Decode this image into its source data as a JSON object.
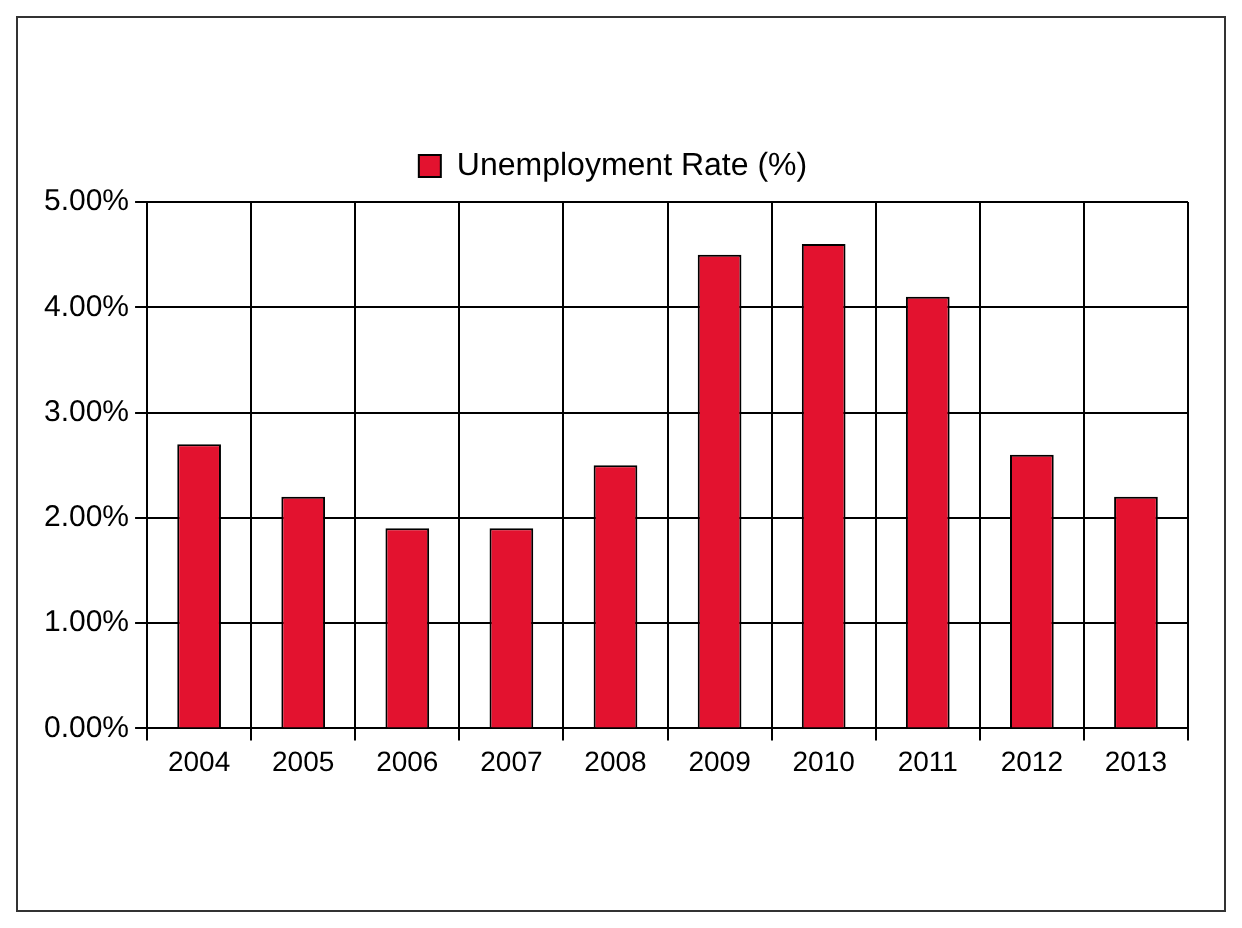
{
  "chart_data": {
    "type": "bar",
    "categories": [
      "2004",
      "2005",
      "2006",
      "2007",
      "2008",
      "2009",
      "2010",
      "2011",
      "2012",
      "2013"
    ],
    "series": [
      {
        "name": "Unemployment Rate (%)",
        "color": "#e3122f",
        "values": [
          2.7,
          2.2,
          1.9,
          1.9,
          2.5,
          4.5,
          4.6,
          4.1,
          2.6,
          2.2
        ]
      }
    ],
    "ylim": [
      0,
      5
    ],
    "yticks": [
      {
        "value": 0,
        "label": "0.00%"
      },
      {
        "value": 1,
        "label": "1.00%"
      },
      {
        "value": 2,
        "label": "2.00%"
      },
      {
        "value": 3,
        "label": "3.00%"
      },
      {
        "value": 4,
        "label": "4.00%"
      },
      {
        "value": 5,
        "label": "5.00%"
      }
    ],
    "grid": true,
    "legend": "top"
  }
}
